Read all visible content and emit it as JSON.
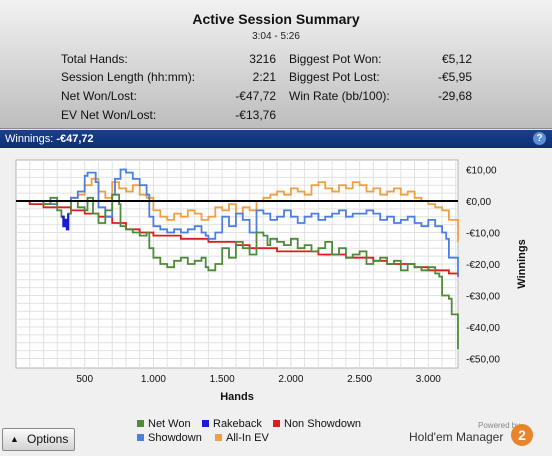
{
  "summary": {
    "title": "Active Session Summary",
    "time_range": "3:04 - 5:26",
    "stats": [
      {
        "label": "Total Hands:",
        "value": "3216"
      },
      {
        "label": "Session Length (hh:mm):",
        "value": "2:21"
      },
      {
        "label": "Net Won/Lost:",
        "value": "-€47,72"
      },
      {
        "label": "EV Net Won/Lost:",
        "value": "-€13,76"
      },
      {
        "label": "Biggest Pot Won:",
        "value": "€5,12"
      },
      {
        "label": "Biggest Pot Lost:",
        "value": "-€5,95"
      },
      {
        "label": "Win Rate (bb/100):",
        "value": "-29,68"
      }
    ]
  },
  "header_bar": {
    "label": "Winnings:",
    "value": "-€47,72",
    "help": "?"
  },
  "options_button": {
    "label": "Options",
    "arrow": "▲"
  },
  "logo": {
    "powered": "Powered by",
    "name": "Hold'em Manager",
    "mark": "2"
  },
  "colors": {
    "net_won": "#4e8a3a",
    "rakeback": "#1b1bd6",
    "non_showdown": "#e01b1b",
    "showdown": "#4d7fe0",
    "all_in_ev": "#f0a040",
    "header_bar": "#15387f"
  },
  "chart_data": {
    "type": "line",
    "xlabel": "Hands",
    "ylabel": "Winnings",
    "xlim": [
      0,
      3216
    ],
    "ylim": [
      -53,
      13
    ],
    "x_ticks": [
      500,
      1000,
      1500,
      2000,
      2500,
      3000
    ],
    "x_tick_labels": [
      "500",
      "1.000",
      "1.500",
      "2.000",
      "2.500",
      "3.000"
    ],
    "y_ticks": [
      10,
      0,
      -10,
      -20,
      -30,
      -40,
      -50
    ],
    "y_tick_labels": [
      "€10,00",
      "€0,00",
      "-€10,00",
      "-€20,00",
      "-€30,00",
      "-€40,00",
      "-€50,00"
    ],
    "grid": true,
    "legend_position": "bottom",
    "zero_line": 0,
    "series": [
      {
        "name": "Net Won",
        "color_key": "net_won",
        "x": [
          0,
          100,
          200,
          250,
          300,
          330,
          350,
          380,
          400,
          450,
          500,
          520,
          560,
          600,
          650,
          700,
          750,
          760,
          800,
          850,
          900,
          950,
          970,
          1000,
          1050,
          1100,
          1150,
          1200,
          1250,
          1300,
          1350,
          1380,
          1400,
          1450,
          1500,
          1550,
          1600,
          1650,
          1700,
          1750,
          1800,
          1830,
          1850,
          1900,
          1950,
          2000,
          2050,
          2100,
          2150,
          2200,
          2250,
          2300,
          2350,
          2400,
          2450,
          2500,
          2550,
          2600,
          2650,
          2700,
          2750,
          2800,
          2850,
          2900,
          2950,
          3000,
          3050,
          3080,
          3100,
          3150,
          3170,
          3216
        ],
        "y": [
          0,
          0,
          -1,
          1,
          -3,
          -5,
          -6,
          -4,
          0,
          -2,
          -3,
          1,
          -4,
          -7,
          -3,
          2,
          -1,
          -8,
          -9,
          -10,
          -11,
          -10,
          -15,
          -18,
          -20,
          -21,
          -19,
          -18,
          -20,
          -19,
          -18,
          -21,
          -22,
          -20,
          -15,
          -18,
          -13,
          -15,
          -17,
          -10,
          -11,
          -14,
          -12,
          -13,
          -14,
          -12,
          -15,
          -14,
          -16,
          -15,
          -13,
          -17,
          -15,
          -18,
          -17,
          -16,
          -20,
          -19,
          -18,
          -20,
          -19,
          -22,
          -20,
          -21,
          -22,
          -21,
          -23,
          -24,
          -30,
          -31,
          -36,
          -47
        ]
      },
      {
        "name": "Rakeback",
        "color_key": "rakeback",
        "x": [
          330,
          345,
          355,
          370,
          380
        ],
        "y": [
          -5,
          -8,
          -6,
          -9,
          -4
        ]
      },
      {
        "name": "Non Showdown",
        "color_key": "non_showdown",
        "x": [
          0,
          100,
          200,
          300,
          400,
          500,
          600,
          700,
          800,
          900,
          1000,
          1100,
          1200,
          1300,
          1400,
          1500,
          1600,
          1700,
          1800,
          1900,
          2000,
          2100,
          2200,
          2300,
          2400,
          2500,
          2600,
          2700,
          2800,
          2900,
          3000,
          3100,
          3150,
          3216
        ],
        "y": [
          0,
          -1,
          -2,
          -2,
          -3,
          -4,
          -5,
          -7,
          -9,
          -10,
          -11,
          -11,
          -12,
          -12,
          -13,
          -13,
          -14,
          -15,
          -15,
          -16,
          -16,
          -16,
          -17,
          -17,
          -18,
          -18,
          -19,
          -20,
          -20,
          -21,
          -22,
          -22,
          -23,
          -24
        ]
      },
      {
        "name": "Showdown",
        "color_key": "showdown",
        "x": [
          0,
          100,
          200,
          300,
          400,
          450,
          500,
          520,
          580,
          600,
          650,
          700,
          720,
          760,
          800,
          850,
          900,
          950,
          970,
          1000,
          1050,
          1100,
          1150,
          1200,
          1250,
          1300,
          1350,
          1380,
          1400,
          1450,
          1500,
          1550,
          1600,
          1650,
          1700,
          1750,
          1800,
          1850,
          1900,
          1950,
          2000,
          2050,
          2100,
          2150,
          2200,
          2250,
          2300,
          2350,
          2400,
          2450,
          2500,
          2550,
          2600,
          2650,
          2700,
          2750,
          2800,
          2850,
          2900,
          2950,
          3000,
          3050,
          3100,
          3130,
          3150,
          3216
        ],
        "y": [
          0,
          0,
          -1,
          0,
          1,
          3,
          8,
          9,
          6,
          -2,
          -5,
          2,
          7,
          10,
          9,
          7,
          5,
          2,
          -5,
          -8,
          -9,
          -10,
          -9,
          -10,
          -9,
          -8,
          -10,
          -11,
          -12,
          -10,
          -5,
          -8,
          -4,
          -6,
          -10,
          -3,
          -4,
          -6,
          -5,
          -3,
          -5,
          -7,
          -5,
          -4,
          -6,
          -5,
          -4,
          -3,
          -5,
          -4,
          -4,
          -3,
          -4,
          -6,
          -5,
          -7,
          -6,
          -5,
          -7,
          -8,
          -6,
          -8,
          -10,
          -12,
          -18,
          -24
        ]
      },
      {
        "name": "All-In EV",
        "color_key": "all_in_ev",
        "x": [
          0,
          100,
          200,
          300,
          400,
          450,
          500,
          550,
          600,
          650,
          700,
          750,
          800,
          850,
          900,
          950,
          1000,
          1050,
          1100,
          1150,
          1200,
          1250,
          1300,
          1350,
          1400,
          1450,
          1500,
          1550,
          1600,
          1650,
          1700,
          1750,
          1800,
          1850,
          1900,
          1950,
          2000,
          2050,
          2100,
          2150,
          2200,
          2250,
          2300,
          2350,
          2400,
          2450,
          2500,
          2550,
          2600,
          2650,
          2700,
          2750,
          2800,
          2850,
          2900,
          2950,
          3000,
          3050,
          3100,
          3150,
          3216
        ],
        "y": [
          0,
          0,
          -1,
          0,
          1,
          2,
          5,
          7,
          3,
          1,
          6,
          4,
          3,
          5,
          2,
          1,
          -3,
          -5,
          -6,
          -4,
          -5,
          -3,
          -4,
          -6,
          -5,
          -2,
          -3,
          -1,
          -4,
          -2,
          -3,
          0,
          1,
          2,
          3,
          2,
          4,
          3,
          2,
          5,
          6,
          4,
          3,
          5,
          4,
          6,
          5,
          3,
          4,
          2,
          3,
          4,
          2,
          3,
          1,
          0,
          -1,
          -2,
          -3,
          -6,
          -13
        ]
      }
    ]
  },
  "legend": [
    {
      "name": "Net Won",
      "color_key": "net_won"
    },
    {
      "name": "Rakeback",
      "color_key": "rakeback"
    },
    {
      "name": "Non Showdown",
      "color_key": "non_showdown"
    },
    {
      "name": "Showdown",
      "color_key": "showdown"
    },
    {
      "name": "All-In EV",
      "color_key": "all_in_ev"
    }
  ]
}
